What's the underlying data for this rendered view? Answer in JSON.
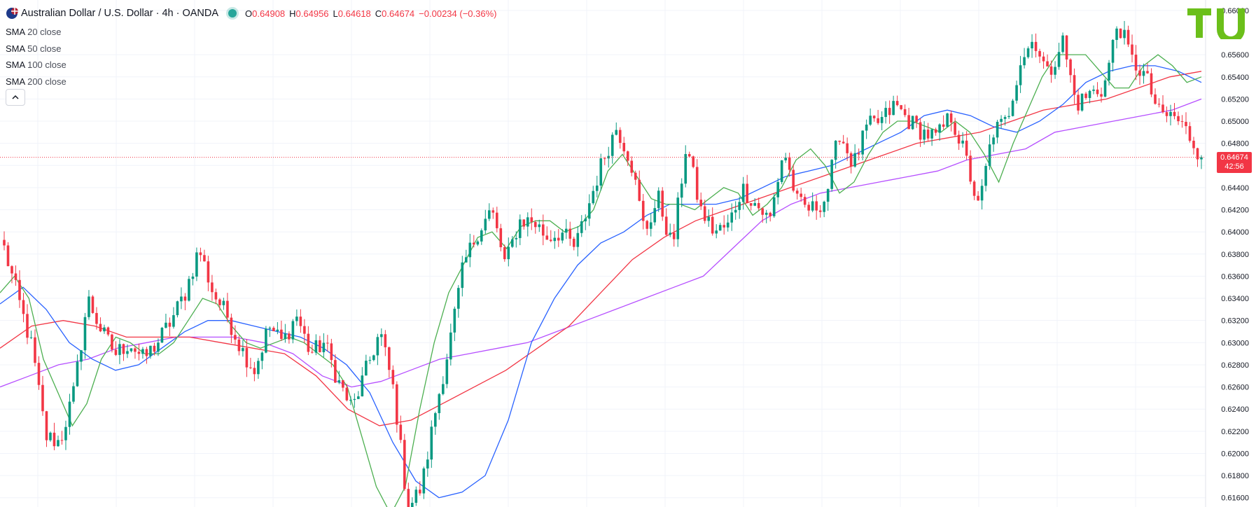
{
  "header": {
    "symbol": "Australian Dollar / U.S. Dollar · 4h · OANDA",
    "o_label": "O",
    "o_value": "0.64908",
    "h_label": "H",
    "h_value": "0.64956",
    "l_label": "L",
    "l_value": "0.64618",
    "c_label": "C",
    "c_value": "0.64674",
    "change": "−0.00234 (−0.36%)"
  },
  "indicators": [
    {
      "name": "SMA",
      "params": "20 close"
    },
    {
      "name": "SMA",
      "params": "50 close"
    },
    {
      "name": "SMA",
      "params": "100 close"
    },
    {
      "name": "SMA",
      "params": "200 close"
    }
  ],
  "collapse_icon": "chevron-up-icon",
  "price_tag": {
    "price": "0.64674",
    "countdown": "42:56"
  },
  "colors": {
    "up": "#089981",
    "down": "#f23645",
    "sma20": "#4caf50",
    "sma50": "#2962ff",
    "sma100": "#f23645",
    "sma200": "#b64fff"
  },
  "chart_data": {
    "type": "candlestick",
    "symbol": "AUDUSD",
    "timeframe": "4h",
    "ylim": [
      0.61516,
      0.66094
    ],
    "y_ticks": [
      "0.66000",
      "0.65600",
      "0.65400",
      "0.65200",
      "0.65000",
      "0.64800",
      "0.64600",
      "0.64400",
      "0.64200",
      "0.64000",
      "0.63800",
      "0.63600",
      "0.63400",
      "0.63200",
      "0.63000",
      "0.62800",
      "0.62600",
      "0.62400",
      "0.62200",
      "0.62000",
      "0.61800",
      "0.61600"
    ],
    "last_price": 0.64674,
    "close_anchors": [
      0.6385,
      0.634,
      0.6295,
      0.6215,
      0.621,
      0.6255,
      0.634,
      0.631,
      0.629,
      0.63,
      0.6285,
      0.63,
      0.632,
      0.6345,
      0.6385,
      0.6345,
      0.6325,
      0.6295,
      0.6275,
      0.6315,
      0.63,
      0.6325,
      0.629,
      0.63,
      0.6265,
      0.624,
      0.6275,
      0.631,
      0.6255,
      0.615,
      0.617,
      0.624,
      0.63,
      0.637,
      0.64,
      0.642,
      0.637,
      0.641,
      0.641,
      0.6395,
      0.64,
      0.6385,
      0.6425,
      0.6465,
      0.6495,
      0.6465,
      0.64,
      0.643,
      0.6385,
      0.648,
      0.642,
      0.64,
      0.6405,
      0.644,
      0.6425,
      0.641,
      0.6475,
      0.6425,
      0.642,
      0.643,
      0.649,
      0.646,
      0.6495,
      0.65,
      0.6515,
      0.65,
      0.649,
      0.6485,
      0.6505,
      0.647,
      0.642,
      0.649,
      0.65,
      0.6555,
      0.6575,
      0.654,
      0.6575,
      0.6515,
      0.6525,
      0.653,
      0.659,
      0.6555,
      0.654,
      0.6505,
      0.6505,
      0.649,
      0.64674
    ],
    "sma20": [
      0.6345,
      0.636,
      0.634,
      0.6285,
      0.6255,
      0.6225,
      0.6245,
      0.6285,
      0.6305,
      0.63,
      0.629,
      0.629,
      0.63,
      0.632,
      0.634,
      0.6335,
      0.6315,
      0.63,
      0.6295,
      0.63,
      0.6305,
      0.63,
      0.629,
      0.628,
      0.626,
      0.6215,
      0.617,
      0.6145,
      0.617,
      0.624,
      0.63,
      0.6345,
      0.637,
      0.6395,
      0.64,
      0.6385,
      0.6405,
      0.641,
      0.641,
      0.64,
      0.6405,
      0.642,
      0.6455,
      0.647,
      0.645,
      0.643,
      0.6425,
      0.6425,
      0.642,
      0.643,
      0.644,
      0.6435,
      0.6415,
      0.6425,
      0.644,
      0.6465,
      0.6475,
      0.646,
      0.6435,
      0.6445,
      0.647,
      0.649,
      0.65,
      0.65,
      0.6495,
      0.649,
      0.65,
      0.649,
      0.647,
      0.6445,
      0.648,
      0.651,
      0.654,
      0.656,
      0.656,
      0.656,
      0.6545,
      0.653,
      0.653,
      0.655,
      0.656,
      0.655,
      0.6535,
      0.654
    ],
    "sma50": [
      0.6335,
      0.635,
      0.633,
      0.63,
      0.6285,
      0.6275,
      0.628,
      0.6295,
      0.631,
      0.632,
      0.632,
      0.6315,
      0.631,
      0.6305,
      0.6295,
      0.628,
      0.6255,
      0.621,
      0.6175,
      0.616,
      0.6165,
      0.618,
      0.623,
      0.63,
      0.634,
      0.637,
      0.639,
      0.64,
      0.6415,
      0.6425,
      0.6425,
      0.6425,
      0.643,
      0.644,
      0.645,
      0.6455,
      0.646,
      0.647,
      0.648,
      0.649,
      0.6505,
      0.651,
      0.6505,
      0.6495,
      0.649,
      0.65,
      0.6515,
      0.6535,
      0.6545,
      0.655,
      0.655,
      0.6545,
      0.6535
    ],
    "sma100": [
      0.6295,
      0.6315,
      0.632,
      0.6315,
      0.6305,
      0.6305,
      0.6305,
      0.63,
      0.6295,
      0.629,
      0.627,
      0.624,
      0.6225,
      0.623,
      0.6245,
      0.626,
      0.6275,
      0.6295,
      0.6315,
      0.6345,
      0.6375,
      0.6395,
      0.641,
      0.642,
      0.643,
      0.644,
      0.645,
      0.646,
      0.647,
      0.648,
      0.6485,
      0.649,
      0.65,
      0.651,
      0.6515,
      0.652,
      0.653,
      0.654,
      0.6545
    ],
    "sma200": [
      0.626,
      0.627,
      0.628,
      0.6285,
      0.6295,
      0.63,
      0.6305,
      0.6305,
      0.6305,
      0.63,
      0.629,
      0.627,
      0.626,
      0.6265,
      0.6275,
      0.6285,
      0.629,
      0.6295,
      0.63,
      0.631,
      0.632,
      0.633,
      0.634,
      0.635,
      0.636,
      0.6385,
      0.641,
      0.6425,
      0.6435,
      0.644,
      0.6445,
      0.645,
      0.6455,
      0.6465,
      0.647,
      0.6475,
      0.649,
      0.6495,
      0.65,
      0.6505,
      0.651,
      0.652
    ]
  }
}
